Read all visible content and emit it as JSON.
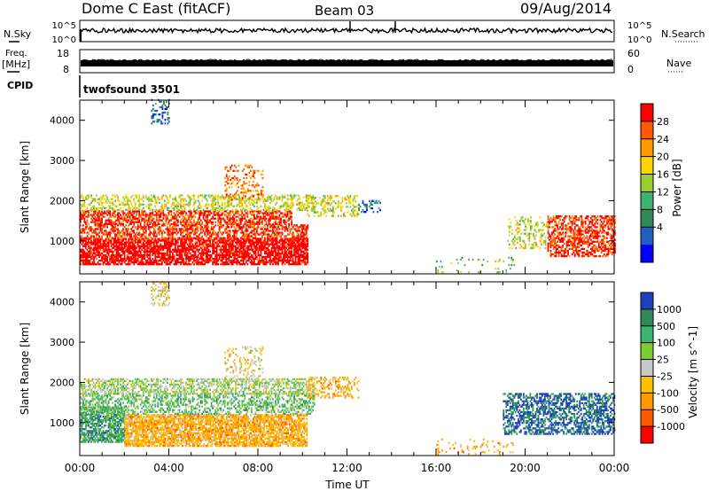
{
  "header": {
    "station": "Dome C East (fitACF)",
    "beam": "Beam 03",
    "date": "09/Aug/2014"
  },
  "status_panels": {
    "nsky_label": "N.Sky",
    "nsearch_label": "N.Search",
    "nsky_ticks": [
      "10^5",
      "10^0"
    ],
    "nsearch_ticks": [
      "10^5",
      "10^0"
    ],
    "freq_label": "Freq.",
    "freq_unit": "[MHz]",
    "freq_ticks": [
      "18",
      "8"
    ],
    "nave_label": "Nave",
    "nave_ticks": [
      "60",
      "0"
    ],
    "cpid_label": "CPID",
    "cpid_value": "twofsound 3501"
  },
  "chart_data": [
    {
      "type": "heatmap",
      "name": "power",
      "ylabel": "Slant Range [km]",
      "colorbar_label": "Power [dB]",
      "xlim": [
        0,
        24
      ],
      "ylim": [
        180,
        4500
      ],
      "yticks": [
        1000,
        2000,
        3000,
        4000
      ],
      "colorbar_ticks": [
        "28",
        "24",
        "20",
        "16",
        "12",
        "8",
        "4"
      ],
      "colorbar_colors": [
        "#ff0000",
        "#ff5a00",
        "#ff9a00",
        "#ffd400",
        "#9acd32",
        "#3cb371",
        "#2e8b57",
        "#1f5fbf",
        "#0000ff"
      ],
      "regions": [
        {
          "t": [
            0.0,
            10.2
          ],
          "r": [
            400,
            1050
          ],
          "level": 0,
          "density": 0.75
        },
        {
          "t": [
            0.0,
            10.2
          ],
          "r": [
            1050,
            1400
          ],
          "level": 1,
          "density": 0.55
        },
        {
          "t": [
            0.0,
            9.5
          ],
          "r": [
            1400,
            1750
          ],
          "level": 1,
          "density": 0.6
        },
        {
          "t": [
            0.0,
            10.5
          ],
          "r": [
            1750,
            2150
          ],
          "level": 4,
          "density": 0.4
        },
        {
          "t": [
            3.2,
            4.0
          ],
          "r": [
            3900,
            4500
          ],
          "level": 7,
          "density": 0.3
        },
        {
          "t": [
            6.5,
            8.2
          ],
          "r": [
            2000,
            2900
          ],
          "level": 2,
          "density": 0.25
        },
        {
          "t": [
            10.2,
            12.5
          ],
          "r": [
            1600,
            2100
          ],
          "level": 4,
          "density": 0.35
        },
        {
          "t": [
            12.5,
            13.5
          ],
          "r": [
            1700,
            2000
          ],
          "level": 7,
          "density": 0.3
        },
        {
          "t": [
            19.2,
            21.0
          ],
          "r": [
            800,
            1600
          ],
          "level": 4,
          "density": 0.3
        },
        {
          "t": [
            21.0,
            24.0
          ],
          "r": [
            600,
            1600
          ],
          "level": 1,
          "density": 0.55
        },
        {
          "t": [
            16.0,
            19.5
          ],
          "r": [
            200,
            600
          ],
          "level": 5,
          "density": 0.12
        }
      ]
    },
    {
      "type": "heatmap",
      "name": "velocity",
      "ylabel": "Slant Range [km]",
      "xlabel": "Time UT",
      "colorbar_label": "Velocity [m s^-1]",
      "xlim": [
        0,
        24
      ],
      "ylim": [
        180,
        4500
      ],
      "yticks": [
        1000,
        2000,
        3000,
        4000
      ],
      "xtick_labels": [
        "00:00",
        "04:00",
        "08:00",
        "12:00",
        "16:00",
        "20:00",
        "00:00"
      ],
      "colorbar_ticks": [
        "1000",
        "500",
        "100",
        "25",
        "-25",
        "-100",
        "-500",
        "-1000"
      ],
      "colorbar_colors": [
        "#1f3fbf",
        "#2e8b57",
        "#3cb371",
        "#7ccd32",
        "#c8c8c8",
        "#ffbf00",
        "#ff9a00",
        "#ff5a00",
        "#ff0000"
      ],
      "regions": [
        {
          "t": [
            0.0,
            2.0
          ],
          "r": [
            500,
            1400
          ],
          "level": 2,
          "density": 0.7
        },
        {
          "t": [
            2.0,
            10.2
          ],
          "r": [
            400,
            1200
          ],
          "level": 6,
          "density": 0.75
        },
        {
          "t": [
            0.0,
            10.5
          ],
          "r": [
            1200,
            1700
          ],
          "level": 3,
          "density": 0.45
        },
        {
          "t": [
            0.0,
            10.5
          ],
          "r": [
            1700,
            2100
          ],
          "level": 4,
          "density": 0.5
        },
        {
          "t": [
            3.2,
            4.0
          ],
          "r": [
            3900,
            4500
          ],
          "level": 5,
          "density": 0.25
        },
        {
          "t": [
            6.5,
            8.2
          ],
          "r": [
            2000,
            2900
          ],
          "level": 5,
          "density": 0.2
        },
        {
          "t": [
            10.2,
            12.5
          ],
          "r": [
            1600,
            2100
          ],
          "level": 6,
          "density": 0.35
        },
        {
          "t": [
            19.0,
            24.0
          ],
          "r": [
            700,
            1700
          ],
          "level": 1,
          "density": 0.55
        },
        {
          "t": [
            16.0,
            19.5
          ],
          "r": [
            200,
            600
          ],
          "level": 6,
          "density": 0.12
        }
      ]
    }
  ]
}
